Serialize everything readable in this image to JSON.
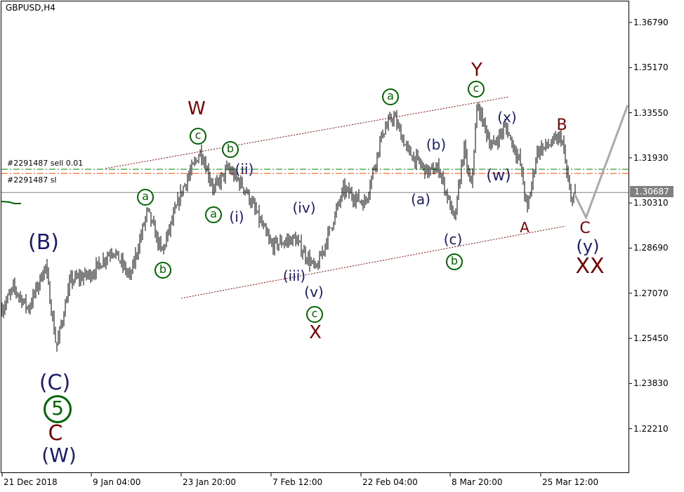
{
  "chart_data": {
    "type": "ohlc",
    "title": "GBPUSD,H4",
    "symbol": "GBPUSD",
    "timeframe": "H4",
    "ylim": [
      1.2035,
      1.3725
    ],
    "y_ticks": [
      "1.36790",
      "1.35170",
      "1.33550",
      "1.31930",
      "1.30310",
      "1.28690",
      "1.27070",
      "1.25450",
      "1.23830",
      "1.22210"
    ],
    "x_ticks": [
      "21 Dec 2018",
      "9 Jan 04:00",
      "23 Jan 20:00",
      "7 Feb 12:00",
      "22 Feb 04:00",
      "8 Mar 20:00",
      "25 Mar 12:00"
    ],
    "x_tick_times": [
      "2018-12-21 00:00",
      "2019-01-09 04:00",
      "2019-01-23 20:00",
      "2019-02-07 12:00",
      "2019-02-22 04:00",
      "2019-03-08 20:00",
      "2019-03-25 12:00"
    ],
    "current_price": "1.30687",
    "price_path": [
      [
        "2018-12-21 00:00",
        1.2651
      ],
      [
        "2018-12-23 12:00",
        1.2726
      ],
      [
        "2018-12-26 16:00",
        1.2651
      ],
      [
        "2018-12-30 08:00",
        1.2807
      ],
      [
        "2019-01-01 16:00",
        1.2512
      ],
      [
        "2019-01-04 16:00",
        1.2752
      ],
      [
        "2019-01-09 04:00",
        1.2777
      ],
      [
        "2019-01-12 16:00",
        1.2865
      ],
      [
        "2019-01-15 12:00",
        1.2764
      ],
      [
        "2019-01-18 08:00",
        1.3004
      ],
      [
        "2019-01-20 16:00",
        1.2852
      ],
      [
        "2019-01-24 00:00",
        1.3079
      ],
      [
        "2019-01-27 00:00",
        1.3218
      ],
      [
        "2019-01-29 04:00",
        1.3079
      ],
      [
        "2019-01-31 12:00",
        1.3155
      ],
      [
        "2019-02-03 08:00",
        1.3079
      ],
      [
        "2019-02-07 12:00",
        1.2878
      ],
      [
        "2019-02-11 08:00",
        1.2903
      ],
      [
        "2019-02-14 20:00",
        1.2789
      ],
      [
        "2019-02-19 08:00",
        1.3079
      ],
      [
        "2019-02-22 20:00",
        1.3029
      ],
      [
        "2019-02-25 16:00",
        1.3281
      ],
      [
        "2019-02-27 12:00",
        1.3344
      ],
      [
        "2019-03-01 20:00",
        1.3218
      ],
      [
        "2019-03-05 04:00",
        1.3142
      ],
      [
        "2019-03-07 00:00",
        1.3155
      ],
      [
        "2019-03-09 16:00",
        1.2966
      ],
      [
        "2019-03-11 08:00",
        1.323
      ],
      [
        "2019-03-12 16:00",
        1.3079
      ],
      [
        "2019-03-13 20:00",
        1.3382
      ],
      [
        "2019-03-16 12:00",
        1.323
      ],
      [
        "2019-03-19 00:00",
        1.3306
      ],
      [
        "2019-03-21 16:00",
        1.318
      ],
      [
        "2019-03-23 00:00",
        1.3004
      ],
      [
        "2019-03-24 20:00",
        1.3218
      ],
      [
        "2019-03-27 08:00",
        1.3243
      ],
      [
        "2019-03-29 08:00",
        1.3268
      ],
      [
        "2019-03-31 00:00",
        1.3041
      ],
      [
        "2019-03-31 20:00",
        1.3072
      ]
    ],
    "forecast_path": [
      [
        "2019-03-31 20:00",
        1.3059
      ],
      [
        "2019-04-02 20:00",
        1.2979
      ],
      [
        "2019-04-10 12:00",
        1.3382
      ]
    ],
    "channel_upper": [
      [
        "2019-01-11 12:00",
        1.3155
      ],
      [
        "2019-03-19 16:00",
        1.3412
      ]
    ],
    "channel_lower": [
      [
        "2019-01-23 20:00",
        1.2689
      ],
      [
        "2019-03-30 00:00",
        1.2948
      ]
    ],
    "order_lines": [
      {
        "label": "#2291487 sell 0.01",
        "price": 1.3152,
        "color": "#008000"
      },
      {
        "label": "#2291487 sl",
        "price": 1.3137,
        "color": "#ff4500"
      }
    ],
    "wave_labels": [
      "W",
      "c",
      "b",
      "(ii)",
      "a",
      "a",
      "(i)",
      "b",
      "(iv)",
      "(B)",
      "(iii)",
      "(v)",
      "c",
      "X",
      "a",
      "Y",
      "c",
      "(x)",
      "B",
      "(b)",
      "(w)",
      "(a)",
      "A",
      "(c)",
      "b",
      "C",
      "(y)",
      "XX",
      "(C)",
      "5",
      "C",
      "(W)"
    ],
    "colors": {
      "bars": "#000000",
      "wave_green": "#006400",
      "wave_navy": "#1a1a6e",
      "wave_red": "#7a0000",
      "forecast": "#a9a9a9",
      "channel": "#8b0000",
      "current_line": "#808080"
    }
  }
}
